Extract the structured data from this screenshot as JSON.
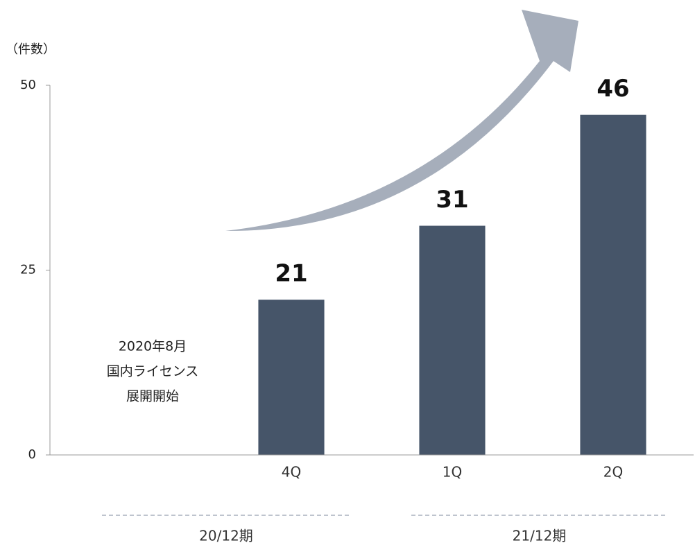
{
  "chart_data": {
    "type": "bar",
    "y_label": "（件数）",
    "categories": [
      null,
      "4Q",
      "1Q",
      "2Q"
    ],
    "values": [
      null,
      21,
      31,
      46
    ],
    "color": "#465569",
    "ylim": [
      0,
      50
    ],
    "yticks": [
      0,
      25,
      50
    ],
    "groups": [
      "20/12期",
      "21/12期"
    ],
    "annotation": [
      "2020年8月",
      "国内ライセンス",
      "展開開始"
    ]
  }
}
